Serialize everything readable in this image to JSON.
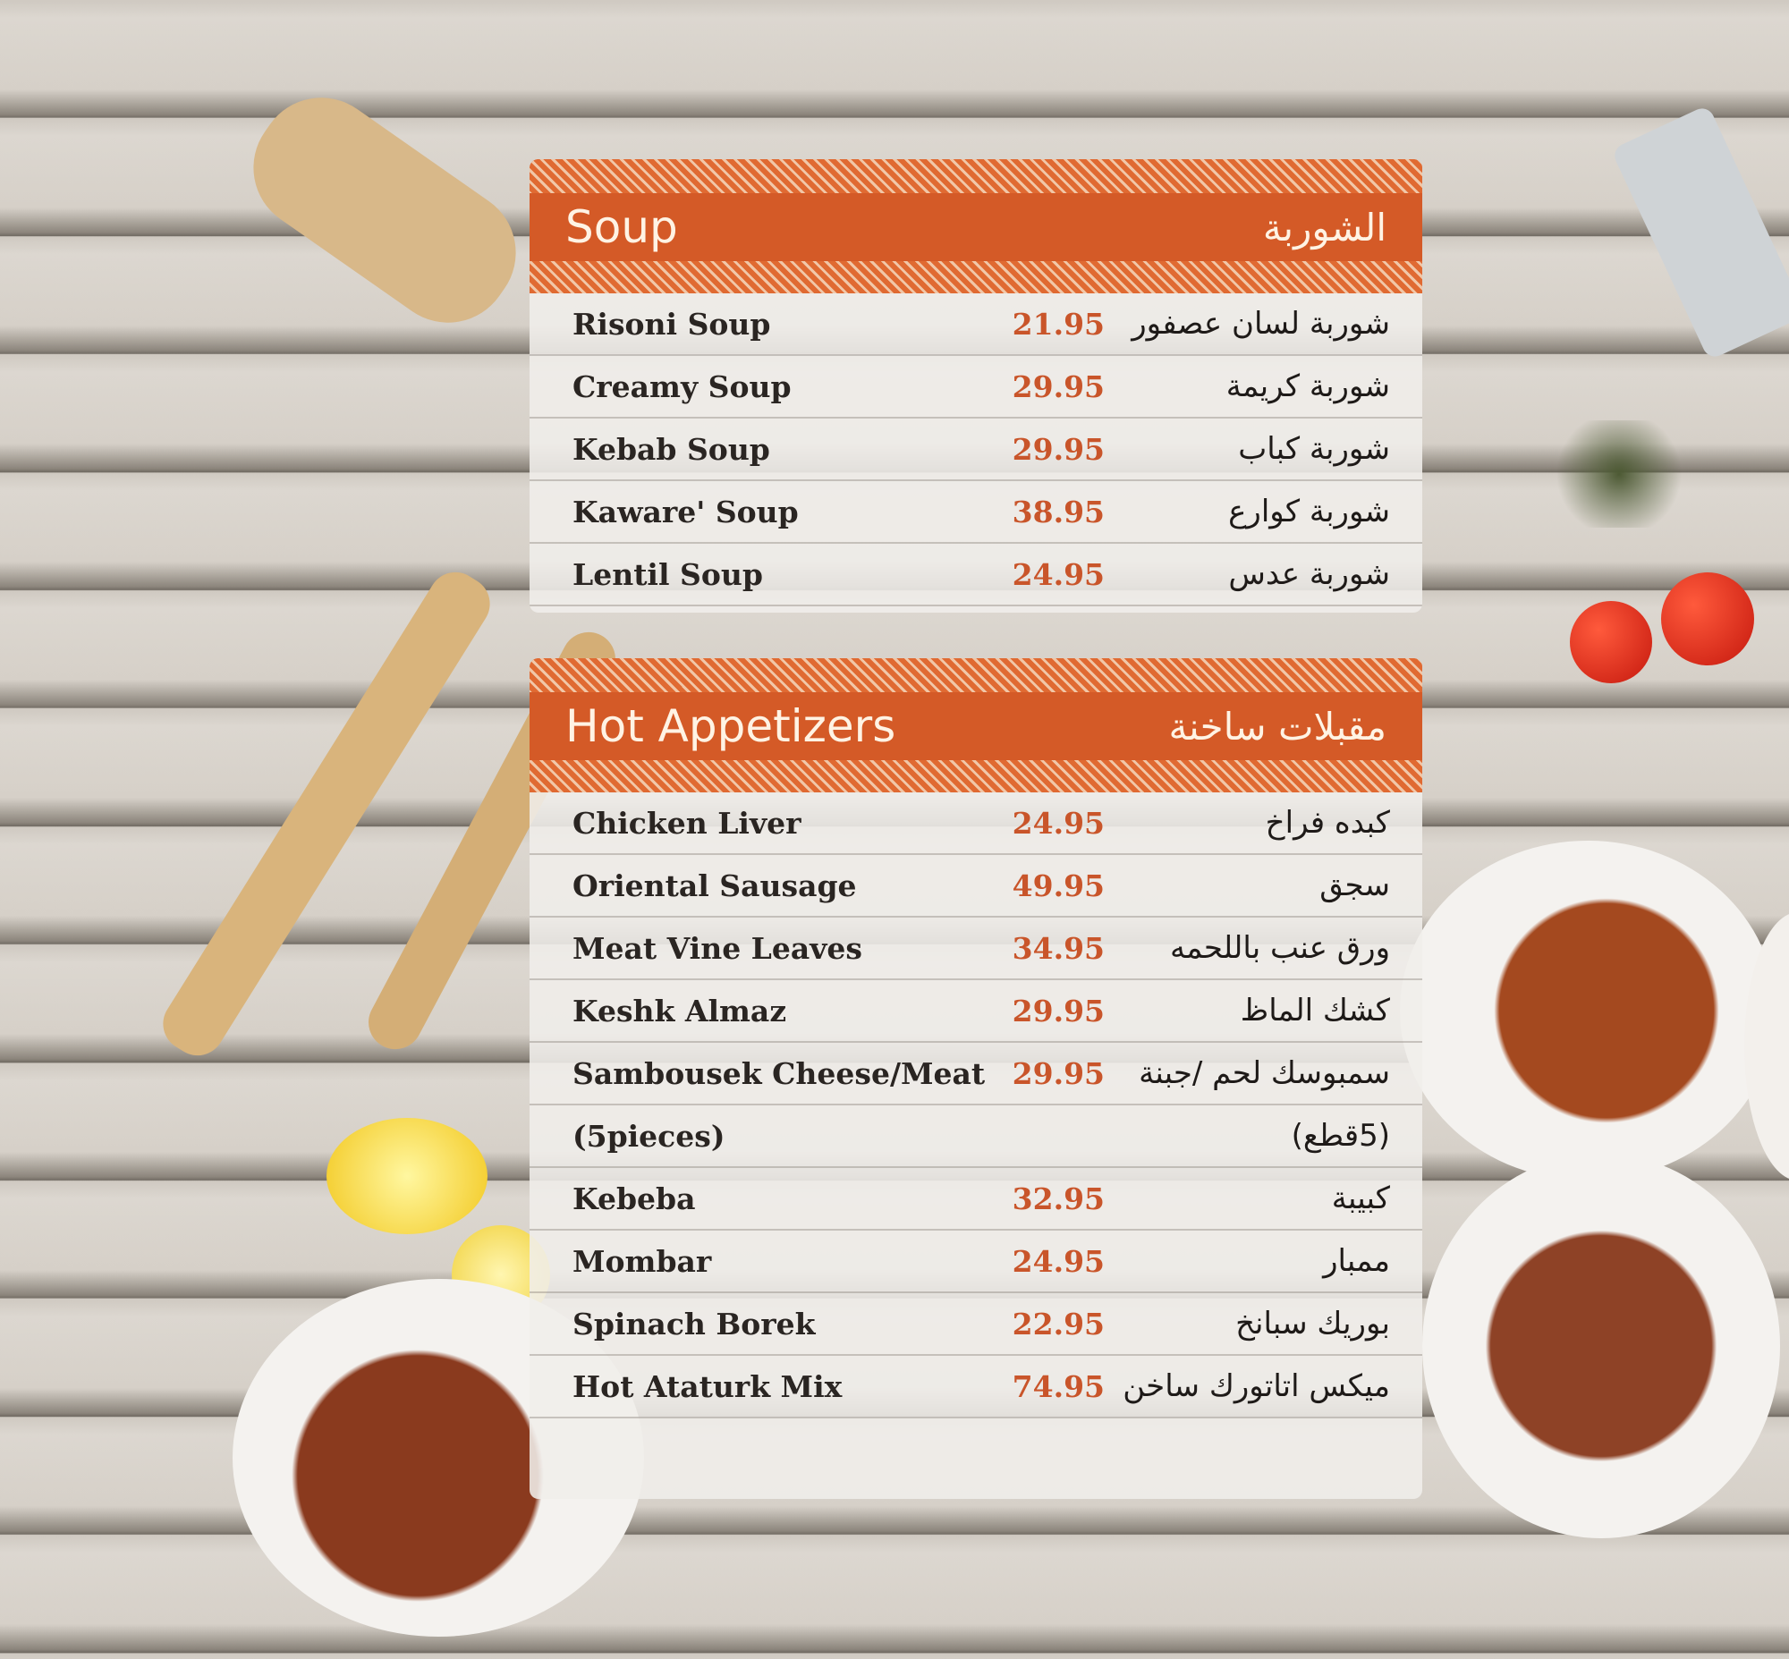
{
  "colors": {
    "accent": "#d45a27",
    "price": "#c9552a"
  },
  "sections": [
    {
      "title_en": "Soup",
      "title_ar": "الشوربة",
      "items": [
        {
          "en": "Risoni Soup",
          "price": "21.95",
          "ar": "شوربة لسان عصفور"
        },
        {
          "en": "Creamy Soup",
          "price": "29.95",
          "ar": "شوربة كريمة"
        },
        {
          "en": "Kebab Soup",
          "price": "29.95",
          "ar": "شوربة كباب"
        },
        {
          "en": "Kaware' Soup",
          "price": "38.95",
          "ar": "شوربة كوارع"
        },
        {
          "en": "Lentil Soup",
          "price": "24.95",
          "ar": "شوربة عدس"
        }
      ]
    },
    {
      "title_en": "Hot Appetizers",
      "title_ar": "مقبلات ساخنة",
      "items": [
        {
          "en": "Chicken Liver",
          "price": "24.95",
          "ar": "كبده فراخ"
        },
        {
          "en": "Oriental Sausage",
          "price": "49.95",
          "ar": "سجق"
        },
        {
          "en": "Meat Vine Leaves",
          "price": "34.95",
          "ar": "ورق عنب باللحمه"
        },
        {
          "en": "Keshk Almaz",
          "price": "29.95",
          "ar": "كشك الماظ"
        },
        {
          "en": "Sambousek Cheese/Meat",
          "price": "29.95",
          "ar": "سمبوسك لحم /جبنة"
        },
        {
          "en": "(5pieces)",
          "price": "",
          "ar": "(5قطع)"
        },
        {
          "en": "Kebeba",
          "price": "32.95",
          "ar": "كبيبة"
        },
        {
          "en": "Mombar",
          "price": "24.95",
          "ar": "ممبار"
        },
        {
          "en": "Spinach Borek",
          "price": "22.95",
          "ar": "بوريك سبانخ"
        },
        {
          "en": "Hot Ataturk Mix",
          "price": "74.95",
          "ar": "ميكس اتاتورك ساخن"
        }
      ]
    }
  ]
}
